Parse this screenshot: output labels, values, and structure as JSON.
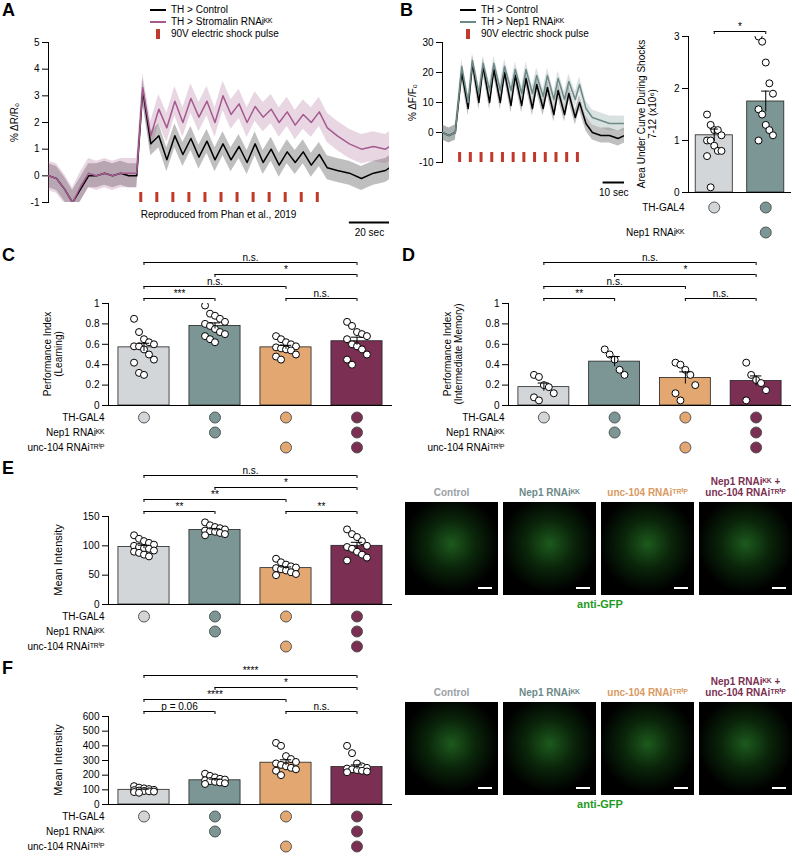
{
  "chart_data": [
    {
      "panel_label": "A",
      "type": "line",
      "y_label": "% ΔR/R₀",
      "tick_labels": "y",
      "legend": "top",
      "x": [
        0,
        4,
        8,
        12,
        16,
        20,
        24,
        28,
        32,
        36,
        40,
        44,
        47,
        51,
        55,
        59,
        63,
        67,
        71,
        75,
        79,
        83,
        87,
        91,
        95,
        99,
        103,
        107,
        111,
        115,
        119,
        123,
        127,
        131,
        135,
        139,
        144,
        150,
        156,
        162,
        168,
        170
      ],
      "xlim": [
        0,
        170
      ],
      "ylim": [
        -1,
        5
      ],
      "yticks": [
        -1,
        0,
        1,
        2,
        3,
        4,
        5
      ],
      "series": [
        {
          "name": "TH > Control",
          "color": "#000000",
          "error": 0.45,
          "values": [
            0,
            -0.1,
            -0.5,
            -1,
            -0.5,
            0,
            0,
            0.1,
            0,
            0.1,
            0,
            0,
            3.2,
            1.2,
            1.5,
            0.6,
            1.5,
            0.8,
            1.4,
            0.7,
            1.3,
            0.6,
            1.2,
            0.6,
            1.1,
            0.5,
            1.2,
            0.5,
            1.0,
            0.4,
            0.9,
            0.5,
            0.9,
            0.4,
            0.8,
            0.3,
            0.2,
            0.1,
            -0.1,
            0.1,
            0.2,
            0.3
          ]
        },
        {
          "name": "TH > Stromalin RNAiᴷᴷ",
          "color": "#a55a8f",
          "error": 0.55,
          "values": [
            0,
            -0.1,
            -0.5,
            -1,
            -0.4,
            0.1,
            0,
            0.1,
            0,
            0.1,
            0.1,
            0.1,
            3.3,
            1.5,
            2.5,
            1.8,
            2.8,
            2.0,
            2.9,
            2.2,
            2.8,
            2.0,
            3.0,
            2.3,
            2.7,
            2.0,
            2.6,
            2.2,
            2.5,
            2.0,
            2.4,
            1.9,
            2.3,
            2.0,
            2.4,
            1.8,
            1.5,
            1.2,
            1.0,
            1.1,
            1.0,
            1.1
          ]
        }
      ],
      "shocks": {
        "label": "90V electric shock pulse",
        "color": "#c0392b",
        "x": [
          46,
          54,
          62,
          70,
          78,
          86,
          94,
          102,
          110,
          118,
          126,
          134
        ]
      },
      "annotation": "Reproduced from Phan et al., 2019",
      "scale_bar": {
        "value": 20,
        "label": "20 sec"
      }
    },
    {
      "panel_label": "B",
      "type": "line",
      "y_label": "% ΔF/F₀",
      "tick_labels": "y",
      "legend": "top",
      "x": [
        0,
        3,
        6,
        9,
        12,
        14,
        17,
        19,
        22,
        24,
        27,
        29,
        32,
        34,
        37,
        39,
        42,
        44,
        47,
        49,
        52,
        54,
        57,
        59,
        62,
        64,
        67,
        70,
        74,
        78,
        82,
        85
      ],
      "xlim": [
        0,
        85
      ],
      "ylim": [
        -10,
        30
      ],
      "yticks": [
        -10,
        0,
        10,
        20,
        30
      ],
      "series": [
        {
          "name": "TH > Control",
          "color": "#000000",
          "error": 2.5,
          "values": [
            0,
            -1,
            0,
            20,
            8,
            23,
            10,
            22,
            10,
            21,
            10,
            20,
            9,
            19,
            9,
            18,
            8,
            16,
            8,
            15,
            6,
            14,
            6,
            13,
            5,
            10,
            3,
            0,
            -1,
            -1,
            -2,
            -1
          ]
        },
        {
          "name": "TH > Nep1 RNAiᴷᴷ",
          "color": "#6d8a88",
          "error": 2.5,
          "values": [
            0,
            -1,
            0,
            22,
            10,
            24,
            13,
            23,
            14,
            23,
            14,
            22,
            14,
            21,
            13,
            21,
            13,
            19,
            12,
            19,
            11,
            18,
            11,
            17,
            11,
            16,
            8,
            5,
            4,
            3,
            3,
            3
          ]
        }
      ],
      "shocks": {
        "label": "90V electric shock pulse",
        "color": "#c0392b",
        "x": [
          8,
          13,
          18,
          23,
          28,
          33,
          38,
          43,
          48,
          53,
          58,
          63
        ]
      },
      "scale_bar": {
        "value": 10,
        "label": "10 sec"
      }
    },
    {
      "type": "bar",
      "y_label": "Area Under Curve During Shocks 7-12 (x10⁶)",
      "tick_labels": "y",
      "categories": [
        null,
        null
      ],
      "values": [
        1.1,
        1.75
      ],
      "errors": [
        0.12,
        0.2
      ],
      "points": [
        [
          1.5,
          1.3,
          1.2,
          1.2,
          1.1,
          1.0,
          1.0,
          0.9,
          0.8,
          0.8,
          0.7,
          0.1
        ],
        [
          3.0,
          2.9,
          2.5,
          2.1,
          1.9,
          1.6,
          1.5,
          1.3,
          1.2,
          1.1,
          1.0
        ]
      ],
      "colors": [
        "#d3d6d9",
        "#7c9695"
      ],
      "ylim": [
        0,
        3
      ],
      "yticks": [
        0,
        1,
        2,
        3
      ],
      "significance": [
        {
          "from": 0,
          "to": 1,
          "label": "*"
        }
      ],
      "genotype": [
        {
          "label": "TH-GAL4",
          "present": [
            true,
            true
          ]
        },
        {
          "label": "Nep1 RNAiᴷᴷ",
          "present": [
            false,
            true
          ]
        }
      ]
    },
    {
      "panel_label": "C",
      "type": "bar",
      "y_label": "Performance Index (Learning)",
      "tick_labels": "y",
      "categories": [
        null,
        null,
        null,
        null
      ],
      "values": [
        0.57,
        0.78,
        0.57,
        0.63
      ],
      "errors": [
        0.04,
        0.03,
        0.02,
        0.04
      ],
      "points": [
        [
          0.85,
          0.72,
          0.65,
          0.62,
          0.6,
          0.58,
          0.58,
          0.55,
          0.5,
          0.45,
          0.42,
          0.32,
          0.3
        ],
        [
          0.98,
          0.9,
          0.88,
          0.85,
          0.82,
          0.8,
          0.78,
          0.75,
          0.72,
          0.7,
          0.68,
          0.65,
          0.62
        ],
        [
          0.68,
          0.65,
          0.62,
          0.6,
          0.58,
          0.57,
          0.56,
          0.55,
          0.54,
          0.5,
          0.48,
          0.45
        ],
        [
          0.82,
          0.78,
          0.72,
          0.7,
          0.68,
          0.65,
          0.6,
          0.58,
          0.55,
          0.5,
          0.45,
          0.4
        ]
      ],
      "colors": [
        "#d3d6d9",
        "#7c9695",
        "#e3a872",
        "#7b2f52"
      ],
      "ylim": [
        0,
        1
      ],
      "yticks": [
        0,
        0.2,
        0.4,
        0.6,
        0.8,
        1
      ],
      "significance": [
        {
          "from": 0,
          "to": 1,
          "label": "***"
        },
        {
          "from": 0,
          "to": 2,
          "label": "n.s."
        },
        {
          "from": 0,
          "to": 3,
          "label": "n.s."
        },
        {
          "from": 1,
          "to": 3,
          "label": "*"
        },
        {
          "from": 2,
          "to": 3,
          "label": "n.s."
        }
      ],
      "genotype": [
        {
          "label": "TH-GAL4",
          "present": [
            true,
            true,
            true,
            true
          ]
        },
        {
          "label": "Nep1 RNAiᴷᴷ",
          "present": [
            false,
            true,
            false,
            true
          ]
        },
        {
          "label": "unc-104 RNAiᵀᴿⁱᴾ",
          "present": [
            false,
            false,
            true,
            true
          ]
        }
      ]
    },
    {
      "panel_label": "D",
      "type": "bar",
      "y_label": "Performance Index (Intermediate Memory)",
      "tick_labels": "y",
      "categories": [
        null,
        null,
        null,
        null
      ],
      "values": [
        0.18,
        0.43,
        0.27,
        0.24
      ],
      "errors": [
        0.04,
        0.05,
        0.06,
        0.05
      ],
      "points": [
        [
          0.3,
          0.28,
          0.2,
          0.18,
          0.12,
          0.08,
          0.05
        ],
        [
          0.55,
          0.5,
          0.45,
          0.35,
          0.3
        ],
        [
          0.42,
          0.4,
          0.35,
          0.3,
          0.2,
          0.12,
          0.05
        ],
        [
          0.42,
          0.3,
          0.25,
          0.22,
          0.15,
          0.05
        ]
      ],
      "colors": [
        "#d3d6d9",
        "#7c9695",
        "#e3a872",
        "#7b2f52"
      ],
      "ylim": [
        0,
        1
      ],
      "yticks": [
        0,
        0.2,
        0.4,
        0.6,
        0.8,
        1
      ],
      "significance": [
        {
          "from": 0,
          "to": 1,
          "label": "**"
        },
        {
          "from": 0,
          "to": 2,
          "label": "n.s."
        },
        {
          "from": 0,
          "to": 3,
          "label": "n.s."
        },
        {
          "from": 1,
          "to": 3,
          "label": "*"
        },
        {
          "from": 2,
          "to": 3,
          "label": "n.s."
        }
      ],
      "genotype": [
        {
          "label": "TH-GAL4",
          "present": [
            true,
            true,
            true,
            true
          ]
        },
        {
          "label": "Nep1 RNAiᴷᴷ",
          "present": [
            false,
            true,
            false,
            true
          ]
        },
        {
          "label": "unc-104 RNAiᵀᴿⁱᴾ",
          "present": [
            false,
            false,
            true,
            true
          ]
        }
      ]
    },
    {
      "panel_label": "E",
      "type": "bar",
      "y_label": "Mean Intensity",
      "tick_labels": "y",
      "categories": [
        null,
        null,
        null,
        null
      ],
      "values": [
        98,
        127,
        62,
        100
      ],
      "errors": [
        3,
        2,
        2,
        6
      ],
      "points": [
        [
          118,
          112,
          108,
          105,
          102,
          100,
          98,
          96,
          95,
          92,
          90,
          88,
          85,
          82
        ],
        [
          140,
          135,
          132,
          130,
          128,
          126,
          125,
          124,
          122,
          120,
          118
        ],
        [
          78,
          72,
          68,
          65,
          63,
          62,
          60,
          58,
          55,
          52,
          50
        ],
        [
          128,
          120,
          115,
          108,
          100,
          98,
          95,
          90,
          85,
          80,
          75
        ]
      ],
      "colors": [
        "#d3d6d9",
        "#7c9695",
        "#e3a872",
        "#7b2f52"
      ],
      "ylim": [
        0,
        150
      ],
      "yticks": [
        0,
        50,
        100,
        150
      ],
      "significance": [
        {
          "from": 0,
          "to": 1,
          "label": "**"
        },
        {
          "from": 0,
          "to": 2,
          "label": "**"
        },
        {
          "from": 0,
          "to": 3,
          "label": "n.s."
        },
        {
          "from": 1,
          "to": 3,
          "label": "*"
        },
        {
          "from": 2,
          "to": 3,
          "label": "**"
        }
      ],
      "genotype": [
        {
          "label": "TH-GAL4",
          "present": [
            true,
            true,
            true,
            true
          ]
        },
        {
          "label": "Nep1 RNAiᴷᴷ",
          "present": [
            false,
            true,
            false,
            true
          ]
        },
        {
          "label": "unc-104 RNAiᵀᴿⁱᴾ",
          "present": [
            false,
            false,
            true,
            true
          ]
        }
      ],
      "micrographs": {
        "headers": [
          "Control",
          "Nep1 RNAiᴷᴷ",
          "unc-104 RNAiᵀᴿⁱᴾ",
          "Nep1 RNAiᴷᴷ + unc-104 RNAiᵀᴿⁱᴾ"
        ],
        "colors": [
          "#9aa0a5",
          "#6d8a88",
          "#d99a5f",
          "#7b2f52"
        ],
        "caption": "anti-GFP",
        "caption_color": "#1f9a1f"
      }
    },
    {
      "panel_label": "F",
      "type": "bar",
      "y_label": "Mean Intensity",
      "tick_labels": "y",
      "categories": [
        null,
        null,
        null,
        null
      ],
      "values": [
        100,
        165,
        285,
        255
      ],
      "errors": [
        5,
        8,
        20,
        15
      ],
      "points": [
        [
          125,
          115,
          110,
          105,
          100,
          98,
          95,
          92,
          90,
          88,
          85,
          80
        ],
        [
          210,
          195,
          185,
          175,
          170,
          165,
          160,
          155,
          150,
          145,
          140
        ],
        [
          420,
          400,
          330,
          310,
          290,
          280,
          270,
          260,
          250,
          240,
          230,
          200
        ],
        [
          400,
          350,
          280,
          260,
          250,
          245,
          240,
          235,
          230,
          225,
          220
        ]
      ],
      "colors": [
        "#d3d6d9",
        "#7c9695",
        "#e3a872",
        "#7b2f52"
      ],
      "ylim": [
        0,
        600
      ],
      "yticks": [
        0,
        100,
        200,
        300,
        400,
        500,
        600
      ],
      "significance": [
        {
          "from": 0,
          "to": 1,
          "label": "p = 0.06"
        },
        {
          "from": 0,
          "to": 2,
          "label": "****"
        },
        {
          "from": 0,
          "to": 3,
          "label": "****"
        },
        {
          "from": 1,
          "to": 3,
          "label": "*"
        },
        {
          "from": 2,
          "to": 3,
          "label": "n.s."
        }
      ],
      "genotype": [
        {
          "label": "TH-GAL4",
          "present": [
            true,
            true,
            true,
            true
          ]
        },
        {
          "label": "Nep1 RNAiᴷᴷ",
          "present": [
            false,
            true,
            false,
            true
          ]
        },
        {
          "label": "unc-104 RNAiᵀᴿⁱᴾ",
          "present": [
            false,
            false,
            true,
            true
          ]
        }
      ],
      "micrographs": {
        "headers": [
          "Control",
          "Nep1 RNAiᴷᴷ",
          "unc-104 RNAiᵀᴿⁱᴾ",
          "Nep1 RNAiᴷᴷ + unc-104 RNAiᵀᴿⁱᴾ"
        ],
        "colors": [
          "#9aa0a5",
          "#6d8a88",
          "#d99a5f",
          "#7b2f52"
        ],
        "caption": "anti-GFP",
        "caption_color": "#1f9a1f"
      }
    }
  ]
}
